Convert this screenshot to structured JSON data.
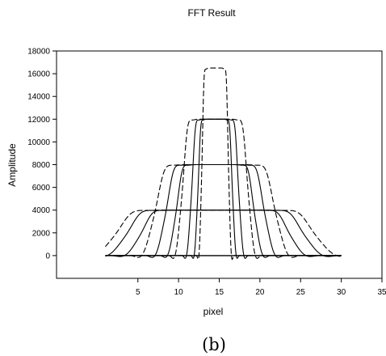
{
  "chart_data": {
    "type": "line",
    "title": "FFT Result",
    "xlabel": "pixel",
    "ylabel": "Amplitude",
    "xlim": [
      -5,
      35
    ],
    "ylim": [
      -2000,
      18000
    ],
    "xticks": [
      5,
      10,
      15,
      20,
      25,
      30,
      35
    ],
    "yticks": [
      0,
      2000,
      4000,
      6000,
      8000,
      10000,
      12000,
      14000,
      16000,
      18000
    ],
    "grid": false,
    "legend": "none",
    "series": [
      {
        "style": "dashed",
        "center": 14.5,
        "peak": 16500,
        "half_width": 1.7
      },
      {
        "style": "dashed",
        "center": 14.5,
        "peak": 12000,
        "half_width": 4.2
      },
      {
        "style": "dashed",
        "center": 14.5,
        "peak": 8000,
        "half_width": 7.7
      },
      {
        "style": "dashed",
        "center": 14.5,
        "peak": 4000,
        "half_width": 12.7
      },
      {
        "style": "solid",
        "center": 14.5,
        "peak": 12000,
        "half_width": 3.0
      },
      {
        "style": "solid",
        "center": 14.5,
        "peak": 8000,
        "half_width": 6.3
      },
      {
        "style": "solid",
        "center": 14.5,
        "peak": 4000,
        "half_width": 11.3
      },
      {
        "style": "solid",
        "center": 14.5,
        "peak": 12000,
        "half_width": 2.2
      },
      {
        "style": "solid",
        "center": 14.5,
        "peak": 8000,
        "half_width": 5.0
      },
      {
        "style": "solid",
        "center": 14.5,
        "peak": 4000,
        "half_width": 9.5
      }
    ],
    "x_range": [
      1,
      30
    ]
  },
  "caption": "(b)"
}
